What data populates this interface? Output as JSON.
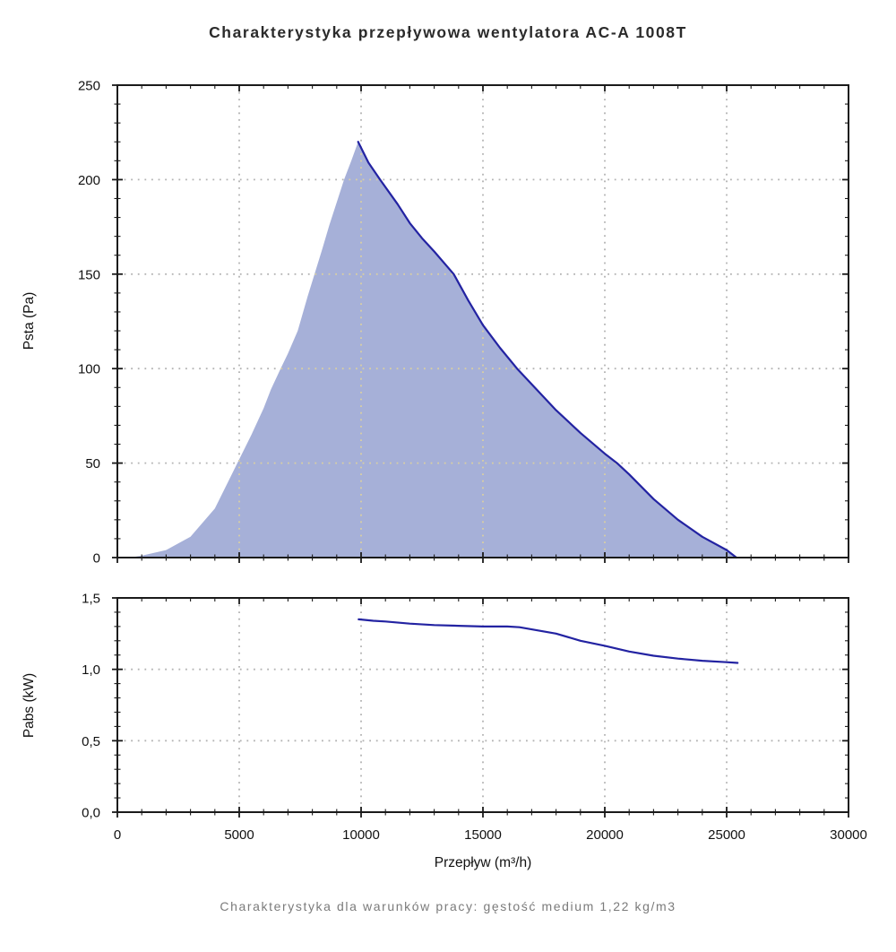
{
  "title": "Charakterystyka przepływowa wentylatora AC-A 1008T",
  "footer": "Charakterystyka dla warunków pracy: gęstość medium 1,22 kg/m3",
  "colors": {
    "line": "#2323a2",
    "fill": "#a6b0d8",
    "grid": "#b3b3b3",
    "grid_in_fill": "#d9cfa2",
    "axis": "#1a1a1a",
    "tick_label": "#111111",
    "title_text": "#2b2b2b",
    "footer_text": "#7b7b7b"
  },
  "chart_data": [
    {
      "type": "area",
      "name": "static-pressure-curve",
      "title": "Charakterystyka przepływowa wentylatora AC-A 1008T",
      "xlabel": "Przepływ (m³/h)",
      "ylabel": "Psta (Pa)",
      "xlim": [
        0,
        30000
      ],
      "ylim": [
        0,
        250
      ],
      "xticks": [
        0,
        5000,
        10000,
        15000,
        20000,
        25000,
        30000
      ],
      "xtick_labels": [
        "0",
        "5000",
        "10000",
        "15000",
        "20000",
        "25000",
        "30000"
      ],
      "show_xtick_labels": false,
      "yticks": [
        0,
        50,
        100,
        150,
        200,
        250
      ],
      "ytick_labels": [
        "0",
        "50",
        "100",
        "150",
        "200",
        "250"
      ],
      "x_minor_step": 1000,
      "y_minor_step": 10,
      "grid": "dotted",
      "legend": "none",
      "area_series": {
        "name": "operating-area",
        "x": [
          500,
          1000,
          2000,
          3000,
          4000,
          5000,
          5500,
          6000,
          6300,
          6700,
          7000,
          7400,
          7800,
          8400,
          8700,
          9000,
          9300,
          9600,
          9880,
          10300,
          10780,
          11500,
          12000,
          12500,
          13000,
          13800,
          14400,
          15000,
          15700,
          16400,
          17200,
          18000,
          19000,
          20000,
          20500,
          21000,
          22000,
          23000,
          24000,
          25000,
          25400
        ],
        "y": [
          0,
          1,
          4,
          11,
          26,
          52,
          65,
          79,
          89,
          100,
          108,
          120,
          138,
          163,
          176,
          188,
          200,
          210,
          220,
          209,
          200,
          187,
          177,
          169,
          162,
          150,
          136,
          123,
          111,
          100,
          89,
          78,
          66,
          55,
          50,
          44,
          31,
          20,
          11,
          4,
          0
        ]
      },
      "line_series": {
        "name": "Psta",
        "x": [
          9880,
          10300,
          10780,
          11500,
          12000,
          12500,
          13000,
          13800,
          14400,
          15000,
          15700,
          16400,
          17200,
          18000,
          19000,
          20000,
          20500,
          21000,
          22000,
          23000,
          24000,
          25000,
          25400
        ],
        "y": [
          220,
          209,
          200,
          187,
          177,
          169,
          162,
          150,
          136,
          123,
          111,
          100,
          89,
          78,
          66,
          55,
          50,
          44,
          31,
          20,
          11,
          4,
          0
        ]
      },
      "peak_point": {
        "x": 9880,
        "y": 220
      }
    },
    {
      "type": "line",
      "name": "absorbed-power-curve",
      "xlabel": "Przepływ (m³/h)",
      "ylabel": "Pabs (kW)",
      "xlim": [
        0,
        30000
      ],
      "ylim": [
        0,
        1.5
      ],
      "xticks": [
        0,
        5000,
        10000,
        15000,
        20000,
        25000,
        30000
      ],
      "xtick_labels": [
        "0",
        "5000",
        "10000",
        "15000",
        "20000",
        "25000",
        "30000"
      ],
      "show_xtick_labels": true,
      "yticks": [
        0,
        0.5,
        1.0,
        1.5
      ],
      "ytick_labels": [
        "0,0",
        "0,5",
        "1,0",
        "1,5"
      ],
      "x_minor_step": 1000,
      "y_minor_step": 0.1,
      "grid": "dotted",
      "legend": "none",
      "line_series": {
        "name": "Pabs",
        "x": [
          9900,
          10500,
          11000,
          12000,
          13000,
          14000,
          15000,
          16000,
          16500,
          17000,
          18000,
          19000,
          20000,
          21000,
          22000,
          23000,
          24000,
          25000,
          25450
        ],
        "y": [
          1.35,
          1.34,
          1.335,
          1.32,
          1.31,
          1.305,
          1.3,
          1.3,
          1.295,
          1.28,
          1.25,
          1.2,
          1.165,
          1.125,
          1.095,
          1.075,
          1.06,
          1.05,
          1.045
        ]
      }
    }
  ]
}
